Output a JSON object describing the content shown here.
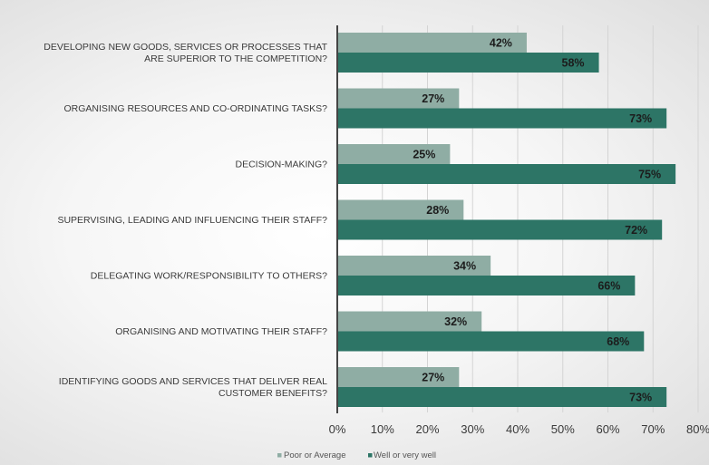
{
  "chart_data": {
    "type": "bar",
    "orientation": "horizontal",
    "categories": [
      [
        "DEVELOPING NEW GOODS, SERVICES OR PROCESSES THAT",
        "ARE SUPERIOR TO THE COMPETITION?"
      ],
      [
        "ORGANISING RESOURCES AND CO-ORDINATING TASKS?"
      ],
      [
        "DECISION-MAKING?"
      ],
      [
        "SUPERVISING, LEADING AND INFLUENCING THEIR STAFF?"
      ],
      [
        "DELEGATING WORK/RESPONSIBILITY TO OTHERS?"
      ],
      [
        "ORGANISING AND MOTIVATING THEIR STAFF?"
      ],
      [
        "IDENTIFYING GOODS AND SERVICES THAT DELIVER REAL",
        "CUSTOMER BENEFITS?"
      ]
    ],
    "series": [
      {
        "name": "Poor or Average",
        "color": "#8fada4",
        "values": [
          42,
          27,
          25,
          28,
          34,
          32,
          27
        ]
      },
      {
        "name": "Well or very well",
        "color": "#2d7566",
        "values": [
          58,
          73,
          75,
          72,
          66,
          68,
          73
        ]
      }
    ],
    "value_suffix": "%",
    "xlim": [
      0,
      80
    ],
    "xticks": [
      "0%",
      "10%",
      "20%",
      "30%",
      "40%",
      "50%",
      "60%",
      "70%",
      "80%"
    ],
    "grid": "vertical",
    "legend_position": "bottom"
  }
}
